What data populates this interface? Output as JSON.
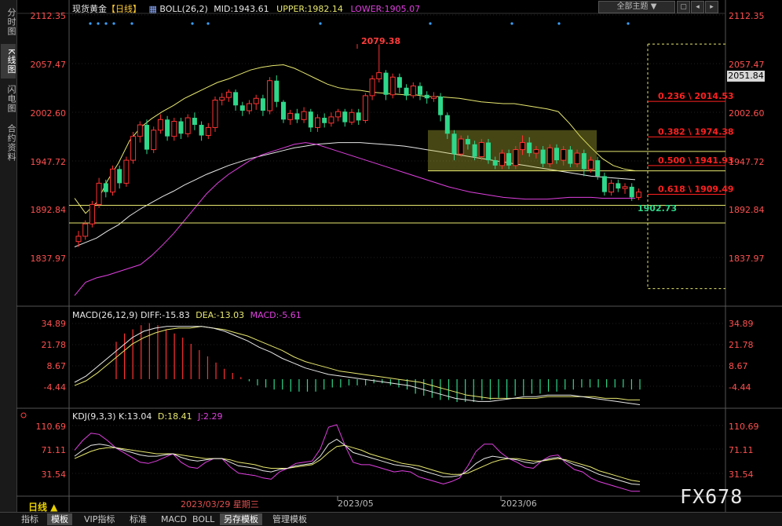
{
  "left_tabs": [
    "分时图",
    "K线图",
    "闪电图",
    "合约资料"
  ],
  "header": {
    "symbol": "现货黄金",
    "period": "【日线】",
    "boll_label": "BOLL(26,2)",
    "mid": "MID:1943.61",
    "upper": "UPPER:1982.14",
    "lower": "LOWER:1905.07"
  },
  "toolbar": {
    "theme_label": "全部主题",
    "icons": [
      "▼",
      "▢",
      "◂",
      "▸",
      "✕"
    ]
  },
  "price_axis": {
    "ticks": [
      "2112.35",
      "2057.47",
      "2002.60",
      "1947.72",
      "1892.84",
      "1837.97"
    ],
    "current": "2051.84"
  },
  "macd_header": {
    "name": "MACD(26,12,9)",
    "diff": "DIFF:-15.83",
    "dea": "DEA:-13.03",
    "macd": "MACD:-5.61"
  },
  "macd_axis": {
    "ticks": [
      "34.89",
      "21.78",
      "8.67",
      "-4.44"
    ]
  },
  "kdj_header": {
    "name": "KDJ(9,3,3)",
    "k": "K:13.04",
    "d": "D:18.41",
    "j": "J:2.29"
  },
  "kdj_axis": {
    "ticks": [
      "110.69",
      "71.11",
      "31.54"
    ]
  },
  "annotations": {
    "high": "2079.38",
    "low": "1902.73"
  },
  "fib_levels": [
    {
      "label": "0.236 \\ 2014.53",
      "price": 2014.53
    },
    {
      "label": "0.382 \\ 1974.38",
      "price": 1974.38
    },
    {
      "label": "0.500 \\ 1941.93",
      "price": 1941.93
    },
    {
      "label": "0.618 \\ 1909.49",
      "price": 1909.49
    }
  ],
  "x_labels": [
    "2023/05",
    "2023/06"
  ],
  "cursor_date": "2023/03/29 星期三",
  "period_selector": "日线 ▲",
  "bottom_tabs": [
    "指标",
    "模板",
    "VIP指标",
    "标准",
    "MACD",
    "BOLL",
    "另存模板",
    "管理模板"
  ],
  "watermark": "FX678",
  "colors": {
    "up": "#ff3232",
    "down": "#2ed88a",
    "mid": "#e8e8e8",
    "upper": "#e8e870",
    "lower": "#e040e0",
    "fib": "#ff2020",
    "hline": "#e8e870"
  },
  "chart_data": {
    "type": "candlestick",
    "title": "现货黄金 日线",
    "ylim": [
      1810,
      2125
    ],
    "price_scale": {
      "p1": 2112.35,
      "p2": 1837.97
    },
    "candles": [
      [
        1856,
        1862,
        1850,
        1868
      ],
      [
        1862,
        1876,
        1858,
        1880
      ],
      [
        1876,
        1898,
        1872,
        1902
      ],
      [
        1898,
        1922,
        1894,
        1928
      ],
      [
        1922,
        1912,
        1906,
        1926
      ],
      [
        1912,
        1938,
        1908,
        1942
      ],
      [
        1938,
        1922,
        1916,
        1942
      ],
      [
        1922,
        1948,
        1918,
        1952
      ],
      [
        1948,
        1975,
        1944,
        1980
      ],
      [
        1975,
        1988,
        1968,
        1992
      ],
      [
        1988,
        1960,
        1955,
        1994
      ],
      [
        1960,
        1982,
        1956,
        1986
      ],
      [
        1982,
        1994,
        1978,
        2000
      ],
      [
        1994,
        1975,
        1970,
        1998
      ],
      [
        1975,
        1992,
        1970,
        1996
      ],
      [
        1992,
        1978,
        1972,
        1996
      ],
      [
        1978,
        1996,
        1974,
        2000
      ],
      [
        1996,
        1988,
        1982,
        2002
      ],
      [
        1988,
        1976,
        1970,
        1992
      ],
      [
        1976,
        1985,
        1972,
        1990
      ],
      [
        1985,
        2016,
        1980,
        2020
      ],
      [
        2016,
        2019,
        2010,
        2024
      ],
      [
        2019,
        2025,
        2014,
        2028
      ],
      [
        2025,
        2010,
        2004,
        2028
      ],
      [
        2010,
        2004,
        1998,
        2014
      ],
      [
        2004,
        2012,
        2000,
        2016
      ],
      [
        2012,
        2018,
        2005,
        2022
      ],
      [
        2018,
        2004,
        1998,
        2022
      ],
      [
        2004,
        2038,
        2000,
        2042
      ],
      [
        2038,
        2014,
        2008,
        2044
      ],
      [
        2014,
        1994,
        1990,
        2016
      ],
      [
        1994,
        2001,
        1988,
        2005
      ],
      [
        2001,
        1994,
        1990,
        2006
      ],
      [
        1994,
        2003,
        1990,
        2008
      ],
      [
        2003,
        1985,
        1980,
        2006
      ],
      [
        1985,
        1996,
        1980,
        2000
      ],
      [
        1996,
        1990,
        1985,
        2001
      ],
      [
        1990,
        1997,
        1986,
        2002
      ],
      [
        1997,
        2003,
        1992,
        2006
      ],
      [
        2003,
        1991,
        1986,
        2006
      ],
      [
        1991,
        2002,
        1988,
        2006
      ],
      [
        2002,
        1993,
        1988,
        2006
      ],
      [
        1993,
        2021,
        1990,
        2024
      ],
      [
        2021,
        2040,
        2016,
        2044
      ],
      [
        2040,
        2047,
        2036,
        2079
      ],
      [
        2047,
        2022,
        2016,
        2050
      ],
      [
        2022,
        2042,
        2018,
        2046
      ],
      [
        2042,
        2030,
        2024,
        2046
      ],
      [
        2030,
        2021,
        2016,
        2034
      ],
      [
        2021,
        2032,
        2018,
        2036
      ],
      [
        2032,
        2022,
        2016,
        2036
      ],
      [
        2022,
        2018,
        2012,
        2026
      ],
      [
        2018,
        2020,
        2014,
        2025
      ],
      [
        2020,
        1999,
        1992,
        2024
      ],
      [
        1999,
        1978,
        1972,
        2002
      ],
      [
        1978,
        1955,
        1948,
        1982
      ],
      [
        1955,
        1972,
        1952,
        1976
      ],
      [
        1972,
        1966,
        1960,
        1976
      ],
      [
        1966,
        1952,
        1948,
        1970
      ],
      [
        1952,
        1968,
        1948,
        1972
      ],
      [
        1968,
        1948,
        1944,
        1972
      ],
      [
        1948,
        1942,
        1938,
        1952
      ],
      [
        1942,
        1956,
        1938,
        1960
      ],
      [
        1956,
        1942,
        1938,
        1960
      ],
      [
        1942,
        1960,
        1938,
        1964
      ],
      [
        1960,
        1968,
        1954,
        1976
      ],
      [
        1968,
        1956,
        1952,
        1974
      ],
      [
        1956,
        1960,
        1950,
        1964
      ],
      [
        1960,
        1944,
        1940,
        1964
      ],
      [
        1944,
        1962,
        1940,
        1966
      ],
      [
        1962,
        1948,
        1944,
        1966
      ],
      [
        1948,
        1960,
        1942,
        1964
      ],
      [
        1960,
        1944,
        1940,
        1964
      ],
      [
        1944,
        1956,
        1940,
        1960
      ],
      [
        1956,
        1938,
        1930,
        1960
      ],
      [
        1938,
        1948,
        1934,
        1952
      ],
      [
        1948,
        1930,
        1926,
        1952
      ],
      [
        1930,
        1912,
        1908,
        1934
      ],
      [
        1912,
        1922,
        1908,
        1926
      ],
      [
        1922,
        1916,
        1912,
        1926
      ],
      [
        1916,
        1918,
        1910,
        1922
      ],
      [
        1918,
        1906,
        1902,
        1922
      ],
      [
        1906,
        1912,
        1903,
        1916
      ]
    ],
    "boll": {
      "upper": [
        1905,
        1888,
        1900,
        1925,
        1945,
        1970,
        1985,
        1995,
        2003,
        2010,
        2018,
        2024,
        2030,
        2036,
        2040,
        2045,
        2050,
        2053,
        2055,
        2056,
        2052,
        2046,
        2040,
        2034,
        2030,
        2028,
        2027,
        2025,
        2024,
        2023,
        2022,
        2022,
        2020,
        2020,
        2019,
        2018,
        2016,
        2014,
        2013,
        2012,
        2012,
        2010,
        2008,
        2006,
        2003,
        1990,
        1975,
        1962,
        1950,
        1942,
        1938,
        1936
      ],
      "mid": [
        1850,
        1855,
        1860,
        1868,
        1875,
        1885,
        1893,
        1900,
        1907,
        1913,
        1920,
        1926,
        1932,
        1937,
        1942,
        1946,
        1950,
        1953,
        1956,
        1959,
        1962,
        1964,
        1966,
        1967,
        1968,
        1968,
        1968,
        1967,
        1966,
        1965,
        1964,
        1962,
        1960,
        1958,
        1956,
        1954,
        1952,
        1950,
        1948,
        1946,
        1944,
        1942,
        1940,
        1938,
        1936,
        1934,
        1932,
        1930,
        1929,
        1928,
        1927,
        1926
      ],
      "lower": [
        1795,
        1810,
        1815,
        1818,
        1822,
        1826,
        1830,
        1840,
        1852,
        1865,
        1880,
        1895,
        1910,
        1922,
        1932,
        1940,
        1948,
        1954,
        1958,
        1962,
        1966,
        1968,
        1966,
        1962,
        1958,
        1954,
        1950,
        1946,
        1942,
        1938,
        1934,
        1930,
        1926,
        1922,
        1918,
        1915,
        1912,
        1910,
        1908,
        1906,
        1905,
        1904,
        1904,
        1904,
        1905,
        1906,
        1906,
        1906,
        1905,
        1905,
        1905,
        1905
      ]
    },
    "fib_high": 2079.38,
    "fib_low": 1902.73,
    "support_lines": [
      1897,
      1877
    ],
    "macd": {
      "ylim": [
        -16,
        40
      ],
      "hist": [
        18,
        22,
        24,
        26,
        27,
        26,
        24,
        22,
        20,
        17,
        14,
        11,
        8,
        5,
        3,
        1,
        -1,
        -3,
        -4,
        -5,
        -5,
        -6,
        -6,
        -6,
        -6,
        -5,
        -4,
        -4,
        -3,
        -3,
        -3,
        -2,
        -2,
        -3,
        -4,
        -5,
        -7,
        -8,
        -9,
        -10,
        -10,
        -11,
        -11,
        -11,
        -10,
        -10,
        -9,
        -9,
        -8,
        -8,
        -7,
        -7,
        -6,
        -6,
        -5,
        -5,
        -4,
        -4,
        -4,
        -4,
        -4,
        -4,
        -5,
        -5
      ],
      "diff": [
        -2,
        2,
        8,
        14,
        20,
        26,
        30,
        32,
        33,
        33,
        33,
        33,
        32,
        30,
        27,
        24,
        20,
        17,
        13,
        10,
        7,
        5,
        3,
        2,
        1,
        0,
        -1,
        -2,
        -3,
        -4,
        -6,
        -8,
        -10,
        -12,
        -13,
        -14,
        -14,
        -13,
        -12,
        -11,
        -11,
        -10,
        -10,
        -10,
        -11,
        -12,
        -13,
        -14,
        -15,
        -16
      ],
      "dea": [
        -4,
        -1,
        4,
        10,
        16,
        22,
        26,
        29,
        31,
        32,
        32,
        33,
        32,
        31,
        29,
        27,
        24,
        21,
        18,
        14,
        11,
        9,
        7,
        5,
        4,
        3,
        2,
        1,
        0,
        -1,
        -2,
        -4,
        -6,
        -8,
        -10,
        -11,
        -12,
        -12,
        -12,
        -12,
        -12,
        -11,
        -11,
        -11,
        -11,
        -11,
        -12,
        -12,
        -13,
        -13
      ]
    },
    "kdj": {
      "ylim": [
        -5,
        120
      ],
      "k": [
        60,
        70,
        78,
        80,
        78,
        74,
        70,
        66,
        62,
        60,
        60,
        62,
        64,
        58,
        54,
        52,
        54,
        56,
        56,
        50,
        44,
        42,
        40,
        36,
        34,
        38,
        40,
        44,
        46,
        48,
        60,
        80,
        88,
        78,
        66,
        62,
        58,
        54,
        50,
        46,
        44,
        42,
        38,
        34,
        30,
        26,
        26,
        28,
        36,
        48,
        56,
        60,
        58,
        56,
        54,
        50,
        48,
        52,
        56,
        58,
        52,
        46,
        42,
        36,
        30,
        26,
        22,
        18,
        14,
        13
      ],
      "d": [
        56,
        62,
        68,
        72,
        74,
        74,
        72,
        70,
        68,
        66,
        64,
        64,
        64,
        62,
        60,
        58,
        56,
        56,
        56,
        54,
        50,
        48,
        46,
        42,
        40,
        40,
        40,
        42,
        44,
        46,
        54,
        66,
        76,
        78,
        74,
        70,
        64,
        60,
        56,
        52,
        48,
        46,
        44,
        40,
        36,
        32,
        30,
        30,
        32,
        38,
        44,
        50,
        54,
        56,
        56,
        54,
        52,
        52,
        54,
        56,
        54,
        50,
        46,
        42,
        36,
        32,
        28,
        24,
        20,
        18
      ],
      "j": [
        70,
        86,
        98,
        96,
        86,
        74,
        66,
        58,
        50,
        48,
        52,
        58,
        64,
        50,
        42,
        40,
        50,
        56,
        56,
        42,
        32,
        30,
        28,
        24,
        22,
        34,
        40,
        48,
        50,
        52,
        72,
        108,
        112,
        78,
        50,
        46,
        46,
        42,
        38,
        34,
        36,
        34,
        26,
        22,
        18,
        14,
        18,
        24,
        44,
        68,
        80,
        80,
        66,
        56,
        50,
        42,
        40,
        52,
        60,
        62,
        48,
        38,
        34,
        24,
        18,
        14,
        10,
        6,
        2,
        2
      ]
    }
  }
}
